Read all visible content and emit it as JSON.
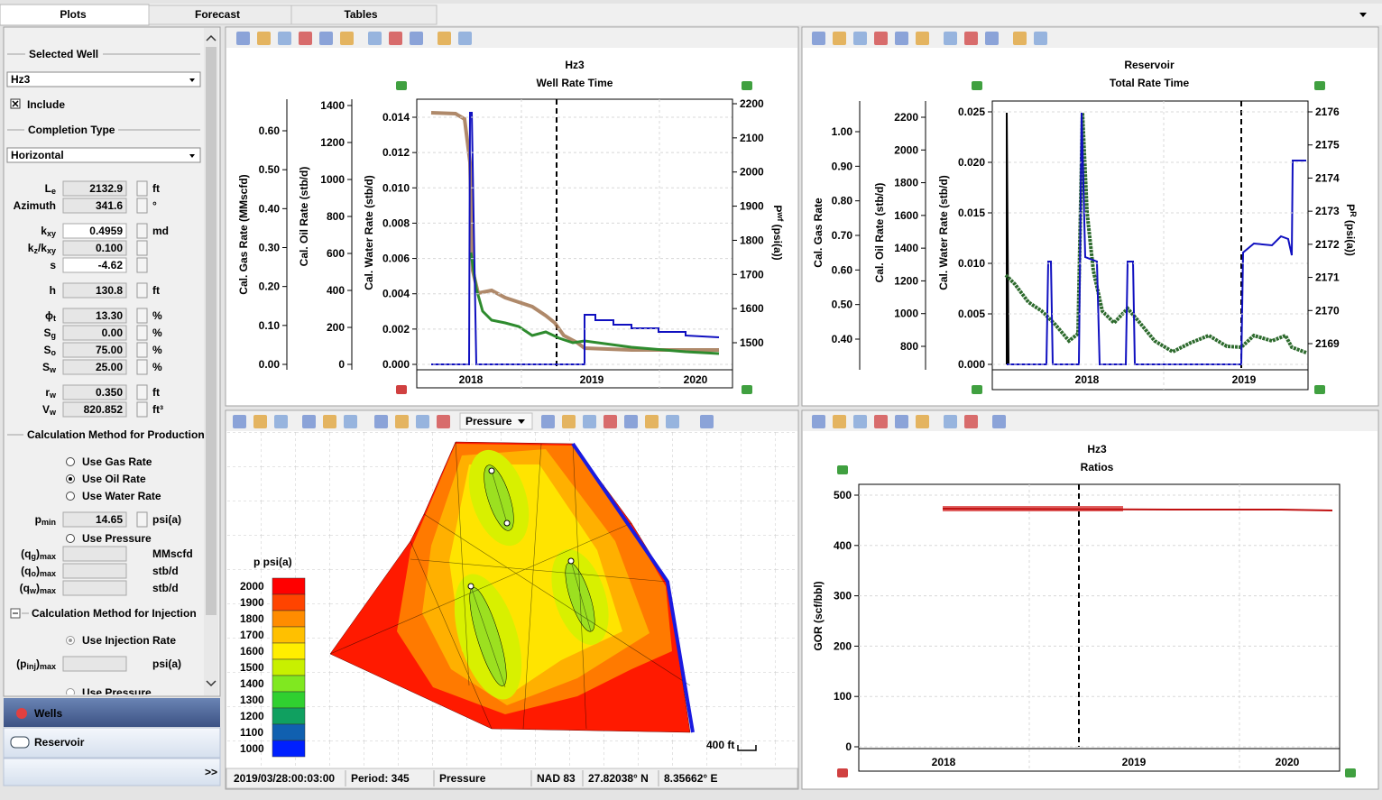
{
  "tabs": [
    "Plots",
    "Forecast",
    "Tables"
  ],
  "left_panel": {
    "selected_well": {
      "heading": "Selected Well",
      "value": "Hz3"
    },
    "include": "Include",
    "completion_type": {
      "heading": "Completion Type",
      "value": "Horizontal"
    },
    "parameters": [
      {
        "label": [
          "L",
          "e"
        ],
        "value": "2132.9",
        "unit": "ft"
      },
      {
        "label": [
          "Azimuth"
        ],
        "value": "341.6",
        "unit": "°"
      },
      {
        "label": [
          "k",
          "xy"
        ],
        "value": "0.4959",
        "unit": "md"
      },
      {
        "label": [
          "k",
          "z",
          "/k",
          "xy"
        ],
        "value": "0.100"
      },
      {
        "label": [
          "s"
        ],
        "value": "-4.62"
      },
      {
        "label": [
          "h"
        ],
        "value": "130.8",
        "unit": "ft"
      },
      {
        "label": [
          "ϕ",
          "t"
        ],
        "value": "13.30",
        "unit": "%"
      },
      {
        "label": [
          "S",
          "g"
        ],
        "value": "0.00",
        "unit": "%"
      },
      {
        "label": [
          "S",
          "o"
        ],
        "value": "75.00",
        "unit": "%"
      },
      {
        "label": [
          "S",
          "w"
        ],
        "value": "25.00",
        "unit": "%"
      },
      {
        "label": [
          "r",
          "w"
        ],
        "value": "0.350",
        "unit": "ft"
      },
      {
        "label": [
          "V",
          "w"
        ],
        "value": "820.852",
        "unit": "ft³"
      }
    ],
    "production": {
      "heading": "Calculation Method for Production",
      "options": [
        "Use Gas Rate",
        "Use Oil Rate",
        "Use Water Rate"
      ],
      "selected": 1,
      "pmin": {
        "label": [
          "p",
          "min"
        ],
        "value": "14.65",
        "unit": "psi(a)"
      },
      "use_pressure": "Use Pressure",
      "limits": [
        {
          "label": [
            "(q",
            "g",
            ")",
            "max"
          ],
          "unit": "MMscfd"
        },
        {
          "label": [
            "(q",
            "o",
            ")",
            "max"
          ],
          "unit": "stb/d"
        },
        {
          "label": [
            "(q",
            "w",
            ")",
            "max"
          ],
          "unit": "stb/d"
        }
      ]
    },
    "injection": {
      "heading": "Calculation Method for Injection",
      "option": "Use Injection Rate",
      "limit": {
        "label": [
          "(p",
          "inj",
          ")",
          "max"
        ],
        "unit": "psi(a)"
      },
      "use_pressure": "Use Pressure"
    },
    "nav": [
      "Wells",
      "Reservoir"
    ],
    "more": ">>"
  },
  "well_rate_plot": {
    "title": "Hz3",
    "subtitle": "Well Rate Time",
    "axes": [
      {
        "label": [
          "Cal. Gas Rate (MMscfd)"
        ],
        "ticks": [
          "0.00",
          "0.10",
          "0.20",
          "0.30",
          "0.40",
          "0.50",
          "0.60"
        ]
      },
      {
        "label": [
          "Cal. Oil Rate (stb/d)"
        ],
        "ticks": [
          "0",
          "200",
          "400",
          "600",
          "800",
          "1000",
          "1200",
          "1400"
        ]
      },
      {
        "label": [
          "Cal. Water Rate (stb/d)"
        ],
        "ticks": [
          "0.000",
          "0.002",
          "0.004",
          "0.006",
          "0.008",
          "0.010",
          "0.012",
          "0.014"
        ]
      },
      {
        "label": [
          "P",
          "wf",
          " (psi(a))"
        ],
        "ticks": [
          "1500",
          "1600",
          "1700",
          "1800",
          "1900",
          "2000",
          "2100",
          "2200"
        ]
      }
    ],
    "x_ticks": [
      "2018",
      "2019",
      "2020"
    ]
  },
  "reservoir_plot": {
    "title": "Reservoir",
    "subtitle": "Total Rate Time",
    "axes": [
      {
        "label": [
          "Cal. Gas Rate"
        ],
        "ticks": [
          "0.40",
          "0.50",
          "0.60",
          "0.70",
          "0.80",
          "0.90",
          "1.00"
        ]
      },
      {
        "label": [
          "Cal. Oil Rate (stb/d)"
        ],
        "ticks": [
          "800",
          "1000",
          "1200",
          "1400",
          "1600",
          "1800",
          "2000",
          "2200"
        ]
      },
      {
        "label": [
          "Cal. Water Rate (stb/d)"
        ],
        "ticks": [
          "0.000",
          "0.005",
          "0.010",
          "0.015",
          "0.020",
          "0.025"
        ]
      },
      {
        "label": [
          "P",
          "R",
          " (psi(a))"
        ],
        "ticks": [
          "2169",
          "2170",
          "2171",
          "2172",
          "2173",
          "2174",
          "2175",
          "2176"
        ]
      }
    ],
    "x_ticks": [
      "2018",
      "2019"
    ]
  },
  "pressure_map": {
    "selector": "Pressure",
    "legend": {
      "title": "p psi(a)",
      "labels": [
        "2000",
        "1900",
        "1800",
        "1700",
        "1600",
        "1500",
        "1400",
        "1300",
        "1200",
        "1100",
        "1000"
      ]
    },
    "scale": "400 ft",
    "status": [
      "2019/03/28:00:03:00",
      "Period: 345",
      "Pressure",
      "NAD 83",
      "27.82038° N",
      "8.35662° E"
    ]
  },
  "ratios_plot": {
    "title": "Hz3",
    "subtitle": "Ratios",
    "axes": [
      {
        "label": [
          "GOR (scf/bbl)"
        ],
        "ticks": [
          "0",
          "100",
          "200",
          "300",
          "400",
          "500"
        ]
      }
    ],
    "x_ticks": [
      "2018",
      "2019",
      "2020"
    ]
  }
}
